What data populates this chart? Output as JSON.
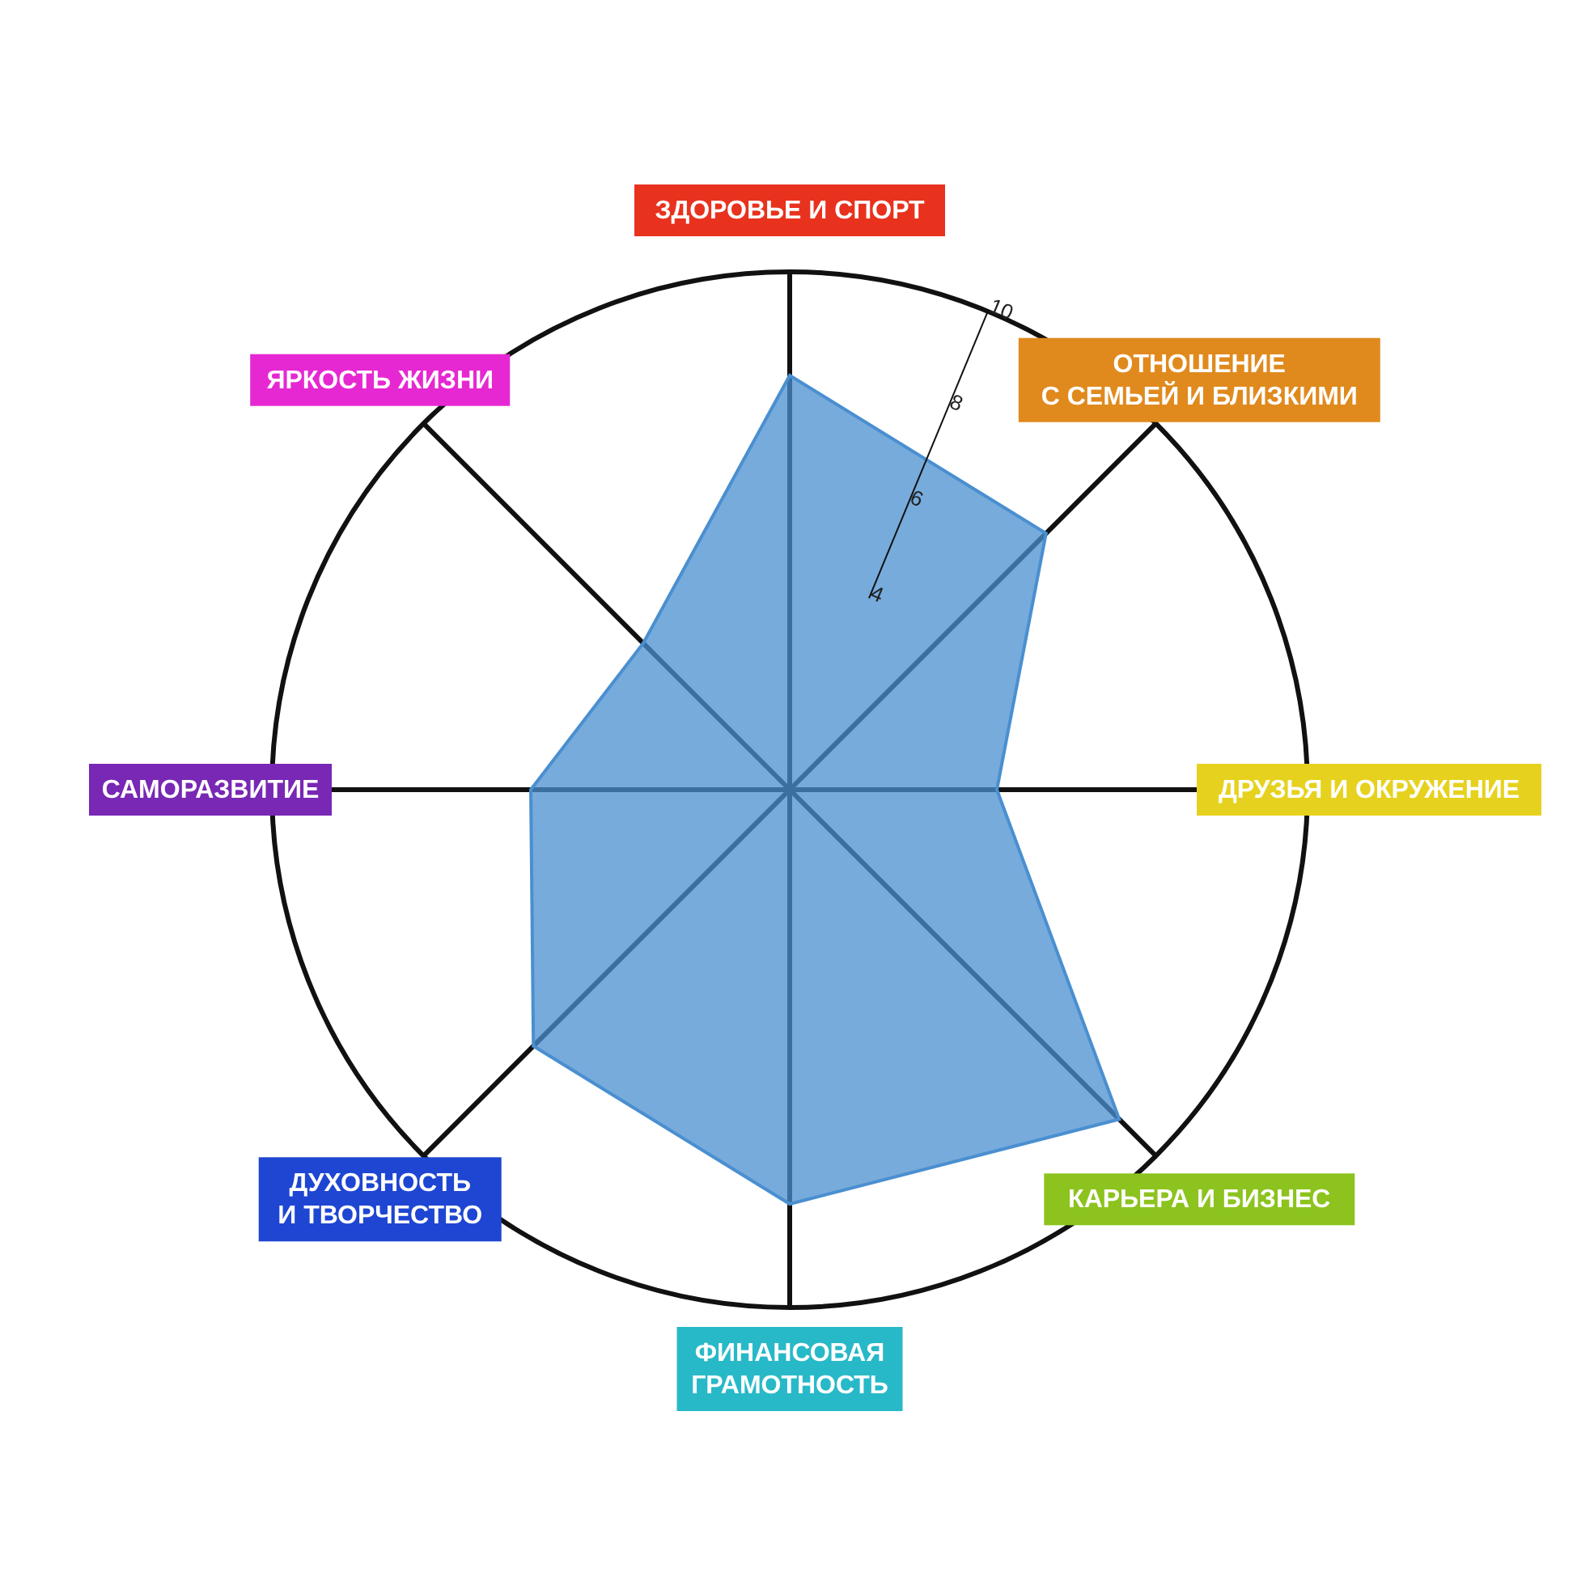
{
  "chart_data": {
    "type": "radar",
    "categories": [
      "ЗДОРОВЬЕ И СПОРТ",
      "ОТНОШЕНИЕ С СЕМЬЕЙ И БЛИЗКИМИ",
      "ДРУЗЬЯ И ОКРУЖЕНИЕ",
      "КАРЬЕРА И БИЗНЕС",
      "ФИНАНСОВАЯ ГРАМОТНОСТЬ",
      "ДУХОВНОСТЬ И ТВОРЧЕСТВО",
      "САМОРАЗВИТИЕ",
      "ЯРКОСТЬ ЖИЗНИ"
    ],
    "colors": [
      "#e8321e",
      "#e08a1e",
      "#e6d21e",
      "#8cc31e",
      "#28b9c8",
      "#1e46d2",
      "#7828b4",
      "#e628d2"
    ],
    "series": [
      {
        "color": "#4a8fd0",
        "values": [
          8,
          7,
          4,
          9,
          8,
          7,
          5,
          4
        ]
      }
    ],
    "ylim": [
      0,
      10
    ],
    "yticks": [
      4,
      6,
      8,
      10
    ],
    "grid": true
  }
}
